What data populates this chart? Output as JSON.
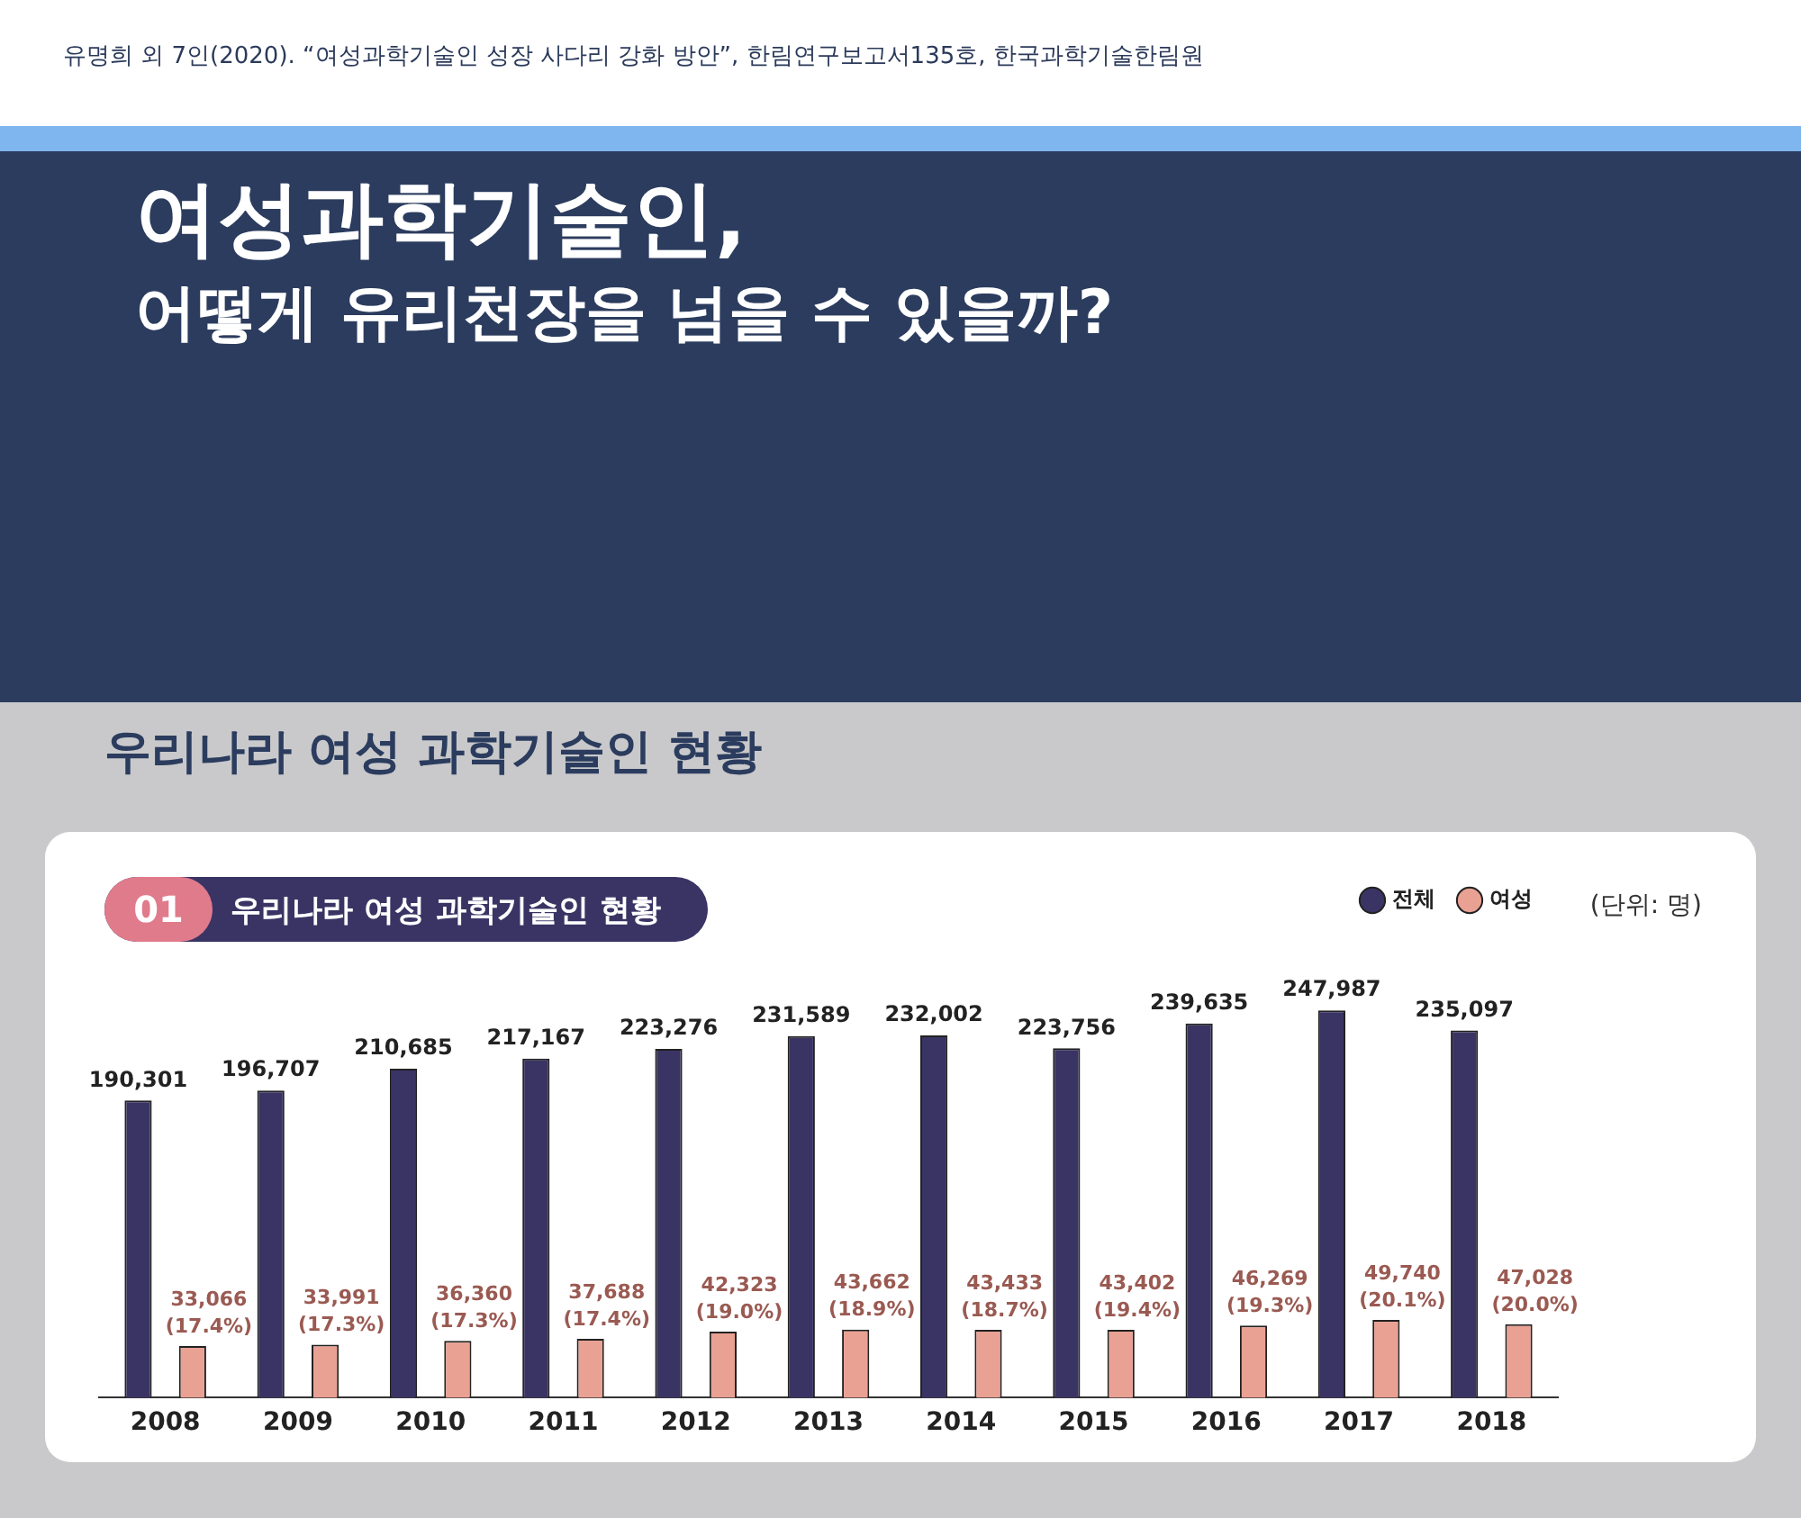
{
  "chart_data": {
    "type": "bar",
    "title": "여성과학기술인,\n어떻게 유리천장을 넘을 수 있을까?",
    "subtitle": "우리나라 여성 과학기술인 현황",
    "annotations": [
      "유명희 외 7인(2020). “여성과학기술인 성장 사다리 강화 방안”, 한림연구보고서135호, 한국과학기술한림원",
      "01",
      "우리나라 여성 과학기술인 현황",
      "(단위: 명)"
    ],
    "categories": [
      "2008",
      "2009",
      "2010",
      "2011",
      "2012",
      "2013",
      "2014",
      "2015",
      "2016",
      "2017",
      "2018"
    ],
    "series": [
      {
        "name": "전체",
        "color": "#3a3464",
        "values": [
          190301,
          196707,
          210685,
          217167,
          223276,
          231589,
          232002,
          223756,
          239635,
          247987,
          235097
        ],
        "value_labels": [
          "190,301",
          "196,707",
          "210,685",
          "217,167",
          "223,276",
          "231,589",
          "232,002",
          "223,756",
          "239,635",
          "247,987",
          "235,097"
        ]
      },
      {
        "name": "여성",
        "color": "#e9a193",
        "values": [
          33066,
          33991,
          36360,
          37688,
          42323,
          43662,
          43433,
          43402,
          46269,
          49740,
          47028
        ],
        "value_labels": [
          "33,066\n(17.4%)",
          "33,991\n(17.3%)",
          "36,360\n(17.3%)",
          "37,688\n(17.4%)",
          "42,323\n(19.0%)",
          "43,662\n(18.9%)",
          "43,433\n(18.7%)",
          "43,402\n(19.4%)",
          "46,269\n(19.3%)",
          "49,740\n(20.1%)",
          "47,028\n(20.0%)"
        ]
      }
    ],
    "legend": "top right",
    "grid": false,
    "tick_labels": "x"
  }
}
